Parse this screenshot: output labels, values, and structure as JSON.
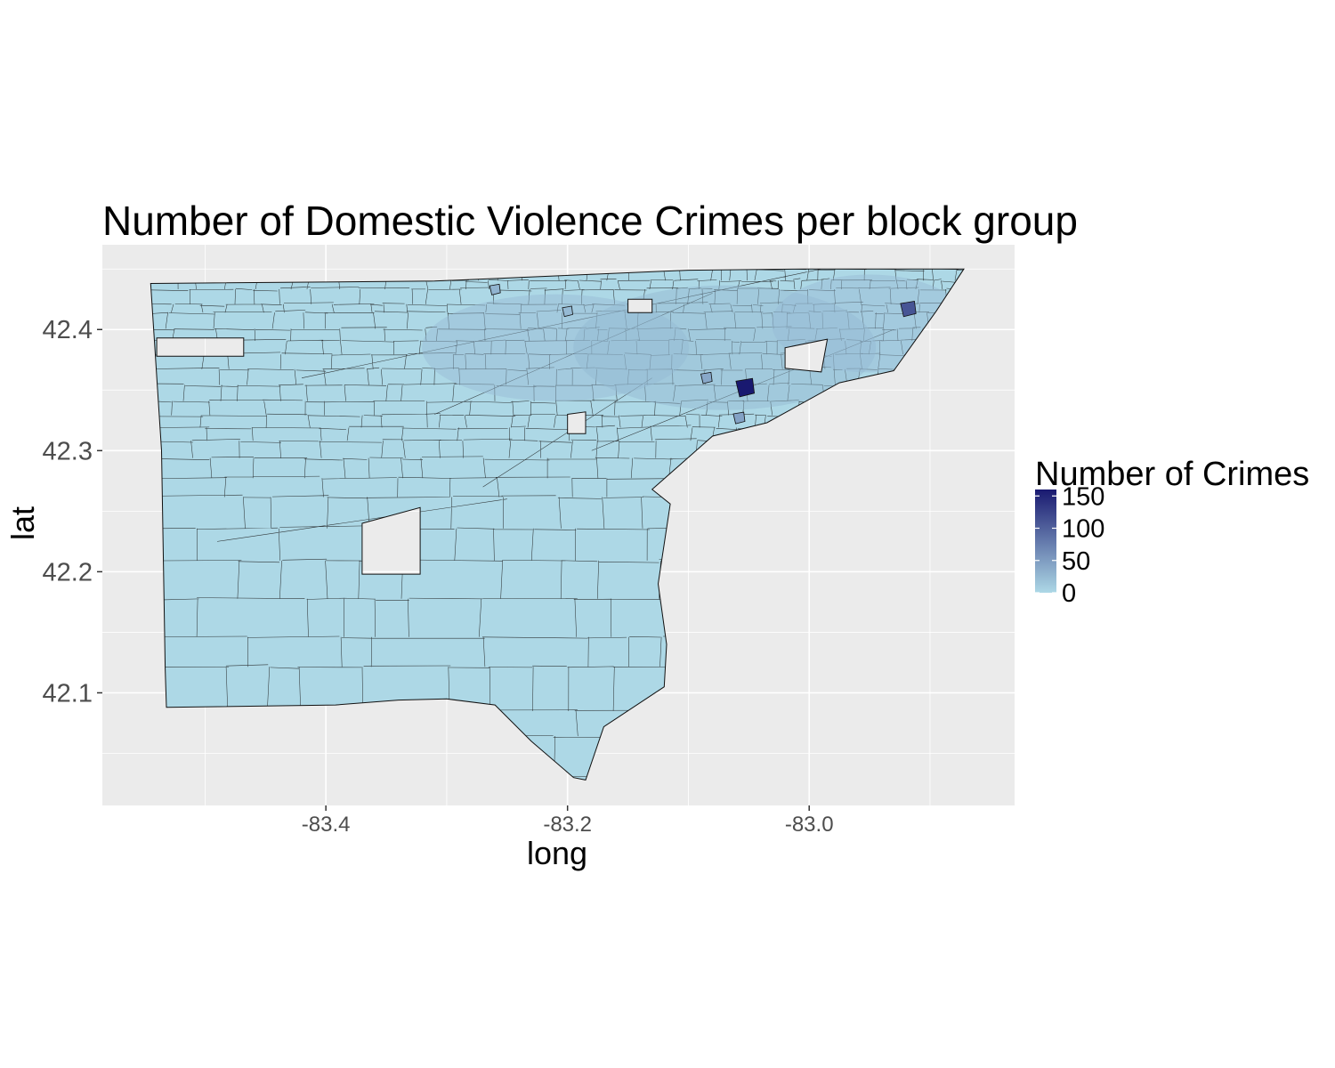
{
  "chart_data": {
    "type": "choropleth",
    "title": "Number of Domestic Violence Crimes per block group",
    "xlabel": "long",
    "ylabel": "lat",
    "x_ticks": [
      -83.4,
      -83.2,
      -83.0
    ],
    "x_tick_labels": [
      "-83.4",
      "-83.2",
      "-83.0"
    ],
    "y_ticks": [
      42.1,
      42.2,
      42.3,
      42.4
    ],
    "y_tick_labels": [
      "42.1",
      "42.2",
      "42.3",
      "42.4"
    ],
    "xlim": [
      -83.585,
      -82.83
    ],
    "ylim": [
      42.007,
      42.47
    ],
    "grid": true,
    "legend": {
      "title": "Number of Crimes",
      "position": "right",
      "breaks": [
        0,
        50,
        100,
        150
      ],
      "break_labels": [
        "0",
        "50",
        "100",
        "150"
      ],
      "range": [
        0,
        160
      ],
      "low_color": "#add8e6",
      "high_color": "#191970"
    },
    "hotspots": [
      {
        "long": -83.053,
        "lat": 42.352,
        "count": 160
      },
      {
        "long": -82.918,
        "lat": 42.417,
        "count": 110
      },
      {
        "long": -83.058,
        "lat": 42.327,
        "count": 45
      },
      {
        "long": -83.085,
        "lat": 42.36,
        "count": 40
      },
      {
        "long": -83.26,
        "lat": 42.433,
        "count": 30
      },
      {
        "long": -83.2,
        "lat": 42.415,
        "count": 25
      }
    ],
    "boundary_polygon": [
      [
        -83.545,
        42.438
      ],
      [
        -83.31,
        42.44
      ],
      [
        -83.1,
        42.449
      ],
      [
        -83.0,
        42.45
      ],
      [
        -82.872,
        42.45
      ],
      [
        -82.895,
        42.415
      ],
      [
        -82.93,
        42.366
      ],
      [
        -82.975,
        42.356
      ],
      [
        -83.035,
        42.323
      ],
      [
        -83.08,
        42.312
      ],
      [
        -83.13,
        42.268
      ],
      [
        -83.115,
        42.256
      ],
      [
        -83.125,
        42.19
      ],
      [
        -83.118,
        42.14
      ],
      [
        -83.12,
        42.105
      ],
      [
        -83.17,
        42.072
      ],
      [
        -83.185,
        42.028
      ],
      [
        -83.195,
        42.03
      ],
      [
        -83.23,
        42.06
      ],
      [
        -83.26,
        42.09
      ],
      [
        -83.3,
        42.095
      ],
      [
        -83.34,
        42.094
      ],
      [
        -83.392,
        42.09
      ],
      [
        -83.532,
        42.088
      ],
      [
        -83.533,
        42.12
      ],
      [
        -83.536,
        42.3
      ],
      [
        -83.545,
        42.438
      ]
    ],
    "holes": [
      [
        [
          -83.54,
          42.393
        ],
        [
          -83.468,
          42.393
        ],
        [
          -83.468,
          42.378
        ],
        [
          -83.54,
          42.378
        ]
      ],
      [
        [
          -83.37,
          42.24
        ],
        [
          -83.322,
          42.253
        ],
        [
          -83.322,
          42.198
        ],
        [
          -83.37,
          42.198
        ]
      ],
      [
        [
          -83.02,
          42.385
        ],
        [
          -82.985,
          42.392
        ],
        [
          -82.99,
          42.365
        ],
        [
          -83.02,
          42.368
        ]
      ],
      [
        [
          -83.2,
          42.33
        ],
        [
          -83.185,
          42.332
        ],
        [
          -83.185,
          42.314
        ],
        [
          -83.2,
          42.314
        ]
      ],
      [
        [
          -83.15,
          42.425
        ],
        [
          -83.13,
          42.425
        ],
        [
          -83.13,
          42.414
        ],
        [
          -83.15,
          42.414
        ]
      ]
    ]
  }
}
